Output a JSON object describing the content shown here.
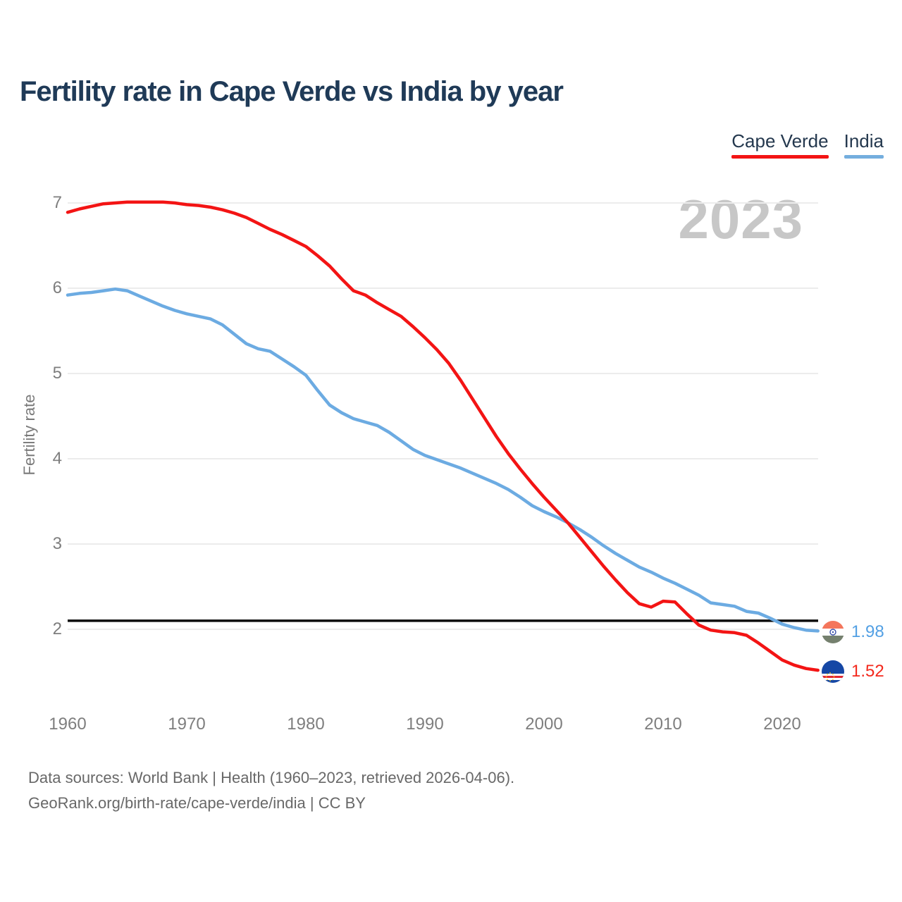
{
  "watermark": "2023",
  "chart_data": {
    "type": "line",
    "title": "Fertility rate in Cape Verde vs India by year",
    "xlabel": "",
    "ylabel": "Fertility rate",
    "x_domain": [
      1960,
      2023
    ],
    "ylim_drawn": [
      2,
      7
    ],
    "x_ticks": [
      1960,
      1970,
      1980,
      1990,
      2000,
      2010,
      2020
    ],
    "y_ticks": [
      2,
      3,
      4,
      5,
      6,
      7
    ],
    "grid": "horizontal",
    "legend_position": "top-right",
    "reference_line": {
      "value": 2.1,
      "color": "#0d0d0d",
      "meaning": "replacement-level fertility"
    },
    "years": [
      1960,
      1961,
      1962,
      1963,
      1964,
      1965,
      1966,
      1967,
      1968,
      1969,
      1970,
      1971,
      1972,
      1973,
      1974,
      1975,
      1976,
      1977,
      1978,
      1979,
      1980,
      1981,
      1982,
      1983,
      1984,
      1985,
      1986,
      1987,
      1988,
      1989,
      1990,
      1991,
      1992,
      1993,
      1994,
      1995,
      1996,
      1997,
      1998,
      1999,
      2000,
      2001,
      2002,
      2003,
      2004,
      2005,
      2006,
      2007,
      2008,
      2009,
      2010,
      2011,
      2012,
      2013,
      2014,
      2015,
      2016,
      2017,
      2018,
      2019,
      2020,
      2021,
      2022,
      2023
    ],
    "series": [
      {
        "name": "Cape Verde",
        "color": "#f31414",
        "icon": "cape-verde-flag-icon",
        "end_label": "1.52",
        "values": [
          6.89,
          6.93,
          6.96,
          6.99,
          7.0,
          7.01,
          7.01,
          7.01,
          7.01,
          7.0,
          6.98,
          6.97,
          6.95,
          6.92,
          6.88,
          6.83,
          6.76,
          6.69,
          6.63,
          6.56,
          6.49,
          6.38,
          6.26,
          6.11,
          5.97,
          5.92,
          5.83,
          5.75,
          5.67,
          5.55,
          5.42,
          5.28,
          5.12,
          4.92,
          4.7,
          4.48,
          4.26,
          4.06,
          3.88,
          3.71,
          3.55,
          3.4,
          3.25,
          3.08,
          2.91,
          2.74,
          2.58,
          2.43,
          2.3,
          2.26,
          2.33,
          2.32,
          2.18,
          2.05,
          1.99,
          1.97,
          1.96,
          1.93,
          1.84,
          1.74,
          1.64,
          1.58,
          1.54,
          1.52
        ]
      },
      {
        "name": "India",
        "color": "#6cabe2",
        "icon": "india-flag-icon",
        "end_label": "1.98",
        "values": [
          5.92,
          5.94,
          5.95,
          5.97,
          5.99,
          5.97,
          5.91,
          5.85,
          5.79,
          5.74,
          5.7,
          5.67,
          5.64,
          5.57,
          5.46,
          5.35,
          5.29,
          5.26,
          5.17,
          5.08,
          4.98,
          4.8,
          4.63,
          4.54,
          4.47,
          4.43,
          4.39,
          4.31,
          4.21,
          4.11,
          4.04,
          3.99,
          3.94,
          3.89,
          3.83,
          3.77,
          3.71,
          3.64,
          3.55,
          3.45,
          3.38,
          3.32,
          3.25,
          3.17,
          3.08,
          2.98,
          2.89,
          2.81,
          2.73,
          2.67,
          2.6,
          2.54,
          2.47,
          2.4,
          2.31,
          2.29,
          2.27,
          2.21,
          2.19,
          2.13,
          2.06,
          2.02,
          1.99,
          1.98
        ]
      }
    ]
  },
  "footer": {
    "line1": "Data sources: World Bank | Health (1960–2023, retrieved 2026-04-06).",
    "line2": "GeoRank.org/birth-rate/cape-verde/india | CC BY"
  }
}
